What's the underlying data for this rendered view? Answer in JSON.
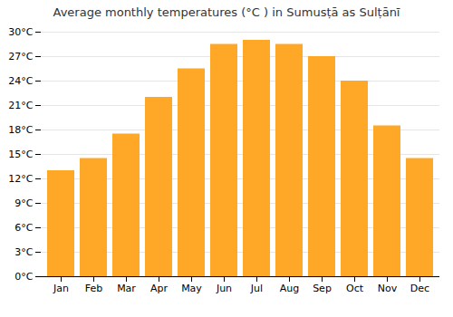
{
  "chart_data": {
    "type": "bar",
    "title": "Average monthly temperatures (°C ) in Sumusṭā as Sulṭānī",
    "categories": [
      "Jan",
      "Feb",
      "Mar",
      "Apr",
      "May",
      "Jun",
      "Jul",
      "Aug",
      "Sep",
      "Oct",
      "Nov",
      "Dec"
    ],
    "values": [
      13.0,
      14.5,
      17.5,
      22.0,
      25.5,
      28.5,
      29.0,
      28.5,
      27.0,
      24.0,
      18.5,
      14.5
    ],
    "color": "#FFA726",
    "ylim": [
      0,
      30
    ],
    "yticks": [
      {
        "value": 0,
        "label": "0°C"
      },
      {
        "value": 3,
        "label": "3°C"
      },
      {
        "value": 6,
        "label": "6°C"
      },
      {
        "value": 9,
        "label": "9°C"
      },
      {
        "value": 12,
        "label": "12°C"
      },
      {
        "value": 15,
        "label": "15°C"
      },
      {
        "value": 18,
        "label": "18°C"
      },
      {
        "value": 21,
        "label": "21°C"
      },
      {
        "value": 24,
        "label": "24°C"
      },
      {
        "value": 27,
        "label": "27°C"
      },
      {
        "value": 30,
        "label": "30°C"
      }
    ],
    "grid": true
  }
}
